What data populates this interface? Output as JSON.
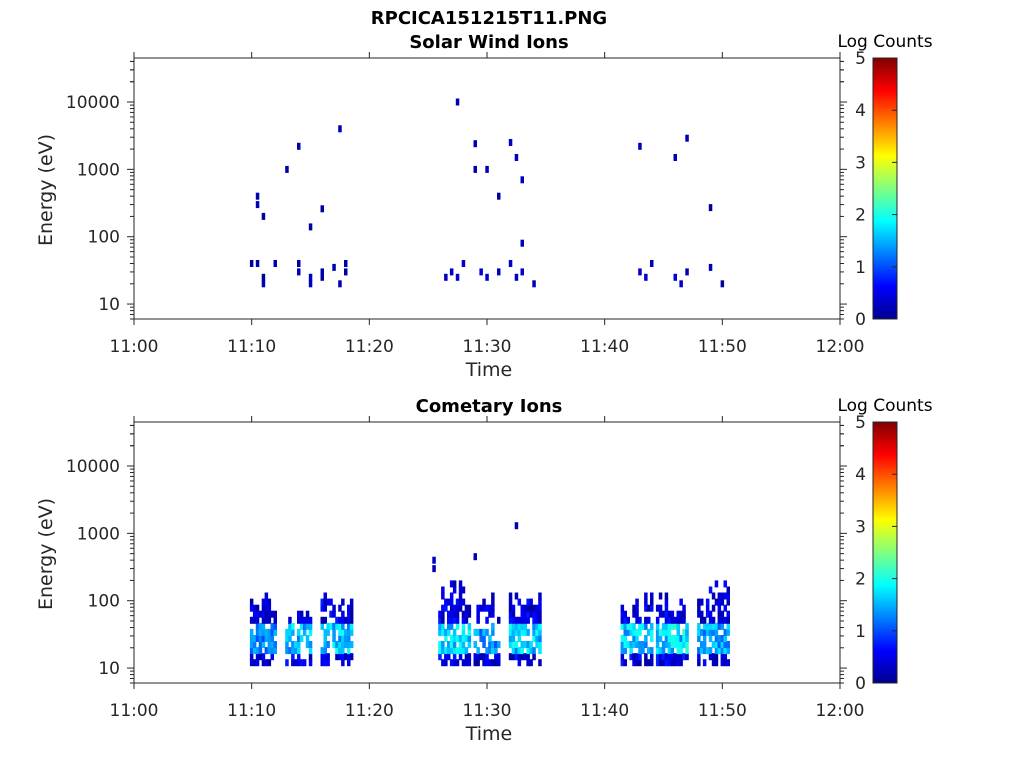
{
  "figure": {
    "title": "RPCICA151215T11.PNG",
    "colors": {
      "frame": "#262626",
      "background": "#ffffff"
    }
  },
  "chart_data": [
    {
      "type": "heatmap",
      "title": "Solar Wind Ions",
      "xlabel": "Time",
      "ylabel": "Energy (eV)",
      "y_scale": "log",
      "xlim": [
        "11:00",
        "12:00"
      ],
      "ylim": [
        6,
        45000
      ],
      "x_ticks": [
        "11:00",
        "11:10",
        "11:20",
        "11:30",
        "11:40",
        "11:50",
        "12:00"
      ],
      "y_ticks": [
        "10",
        "100",
        "1000",
        "10000"
      ],
      "colorbar": {
        "label": "Log Counts",
        "range": [
          0,
          5
        ],
        "ticks": [
          "0",
          "1",
          "2",
          "3",
          "4",
          "5"
        ],
        "colormap": "jet"
      },
      "points": [
        [
          "11:10",
          40,
          0.1
        ],
        [
          "11:10.5",
          40,
          0.1
        ],
        [
          "11:11",
          20,
          0.2
        ],
        [
          "11:11",
          25,
          0.1
        ],
        [
          "11:12",
          40,
          0.2
        ],
        [
          "11:14",
          30,
          0.2
        ],
        [
          "11:14",
          40,
          0.1
        ],
        [
          "11:15",
          25,
          0.3
        ],
        [
          "11:15",
          20,
          0.2
        ],
        [
          "11:16",
          30,
          0.2
        ],
        [
          "11:16",
          25,
          0.1
        ],
        [
          "11:17",
          35,
          0.2
        ],
        [
          "11:17.5",
          20,
          0.2
        ],
        [
          "11:18",
          30,
          0.1
        ],
        [
          "11:18",
          40,
          0.2
        ],
        [
          "11:10.5",
          300,
          0.2
        ],
        [
          "11:10.5",
          400,
          0.2
        ],
        [
          "11:11",
          200,
          0.1
        ],
        [
          "11:13",
          1000,
          0.1
        ],
        [
          "11:14",
          2200,
          0.2
        ],
        [
          "11:16",
          260,
          0.1
        ],
        [
          "11:17.5",
          4000,
          0.2
        ],
        [
          "11:15",
          140,
          0.1
        ],
        [
          "11:26.5",
          25,
          0.3
        ],
        [
          "11:27",
          30,
          0.3
        ],
        [
          "11:27.5",
          25,
          0.4
        ],
        [
          "11:28",
          40,
          0.3
        ],
        [
          "11:29.5",
          30,
          0.4
        ],
        [
          "11:30",
          25,
          0.4
        ],
        [
          "11:31",
          30,
          0.3
        ],
        [
          "11:32",
          40,
          0.3
        ],
        [
          "11:32.5",
          25,
          0.3
        ],
        [
          "11:33",
          30,
          0.4
        ],
        [
          "11:34",
          20,
          0.2
        ],
        [
          "11:33",
          80,
          0.2
        ],
        [
          "11:27.5",
          10000,
          0.2
        ],
        [
          "11:29",
          2400,
          0.2
        ],
        [
          "11:29",
          1000,
          0.1
        ],
        [
          "11:30",
          1000,
          0.2
        ],
        [
          "11:32",
          2500,
          0.3
        ],
        [
          "11:32.5",
          1500,
          0.3
        ],
        [
          "11:33",
          700,
          0.2
        ],
        [
          "11:31",
          400,
          0.1
        ],
        [
          "11:43",
          30,
          0.3
        ],
        [
          "11:43.5",
          25,
          0.4
        ],
        [
          "11:44",
          40,
          0.2
        ],
        [
          "11:46",
          25,
          0.4
        ],
        [
          "11:46.5",
          20,
          0.3
        ],
        [
          "11:47",
          30,
          0.2
        ],
        [
          "11:49",
          35,
          0.2
        ],
        [
          "11:50",
          20,
          0.1
        ],
        [
          "11:43",
          2200,
          0.2
        ],
        [
          "11:46",
          1500,
          0.2
        ],
        [
          "11:47",
          2900,
          0.2
        ],
        [
          "11:49",
          270,
          0.1
        ]
      ]
    },
    {
      "type": "heatmap",
      "title": "Cometary Ions",
      "xlabel": "Time",
      "ylabel": "Energy (eV)",
      "y_scale": "log",
      "xlim": [
        "11:00",
        "12:00"
      ],
      "ylim": [
        6,
        45000
      ],
      "x_ticks": [
        "11:00",
        "11:10",
        "11:20",
        "11:30",
        "11:40",
        "11:50",
        "12:00"
      ],
      "y_ticks": [
        "10",
        "100",
        "1000",
        "10000"
      ],
      "colorbar": {
        "label": "Log Counts",
        "range": [
          0,
          5
        ],
        "ticks": [
          "0",
          "1",
          "2",
          "3",
          "4",
          "5"
        ],
        "colormap": "jet"
      },
      "bursts": [
        {
          "t0": "11:10",
          "t1": "11:12",
          "peak_energy": 150,
          "peak_level": 1.6
        },
        {
          "t0": "11:13",
          "t1": "11:15",
          "peak_energy": 70,
          "peak_level": 1.9
        },
        {
          "t0": "11:16",
          "t1": "11:18.5",
          "peak_energy": 150,
          "peak_level": 2.0
        },
        {
          "t0": "11:26",
          "t1": "11:28.5",
          "peak_energy": 200,
          "peak_level": 2.0
        },
        {
          "t0": "11:29",
          "t1": "11:31",
          "peak_energy": 130,
          "peak_level": 1.7
        },
        {
          "t0": "11:32",
          "t1": "11:34.5",
          "peak_energy": 140,
          "peak_level": 2.0
        },
        {
          "t0": "11:41.5",
          "t1": "11:44",
          "peak_energy": 150,
          "peak_level": 2.0
        },
        {
          "t0": "11:44.5",
          "t1": "11:47",
          "peak_energy": 160,
          "peak_level": 2.1
        },
        {
          "t0": "11:48",
          "t1": "11:50.5",
          "peak_energy": 220,
          "peak_level": 1.8
        }
      ],
      "points": [
        [
          "11:25.5",
          400,
          0.3
        ],
        [
          "11:25.5",
          300,
          0.2
        ],
        [
          "11:29",
          450,
          0.2
        ],
        [
          "11:32.5",
          1300,
          0.2
        ]
      ]
    }
  ]
}
